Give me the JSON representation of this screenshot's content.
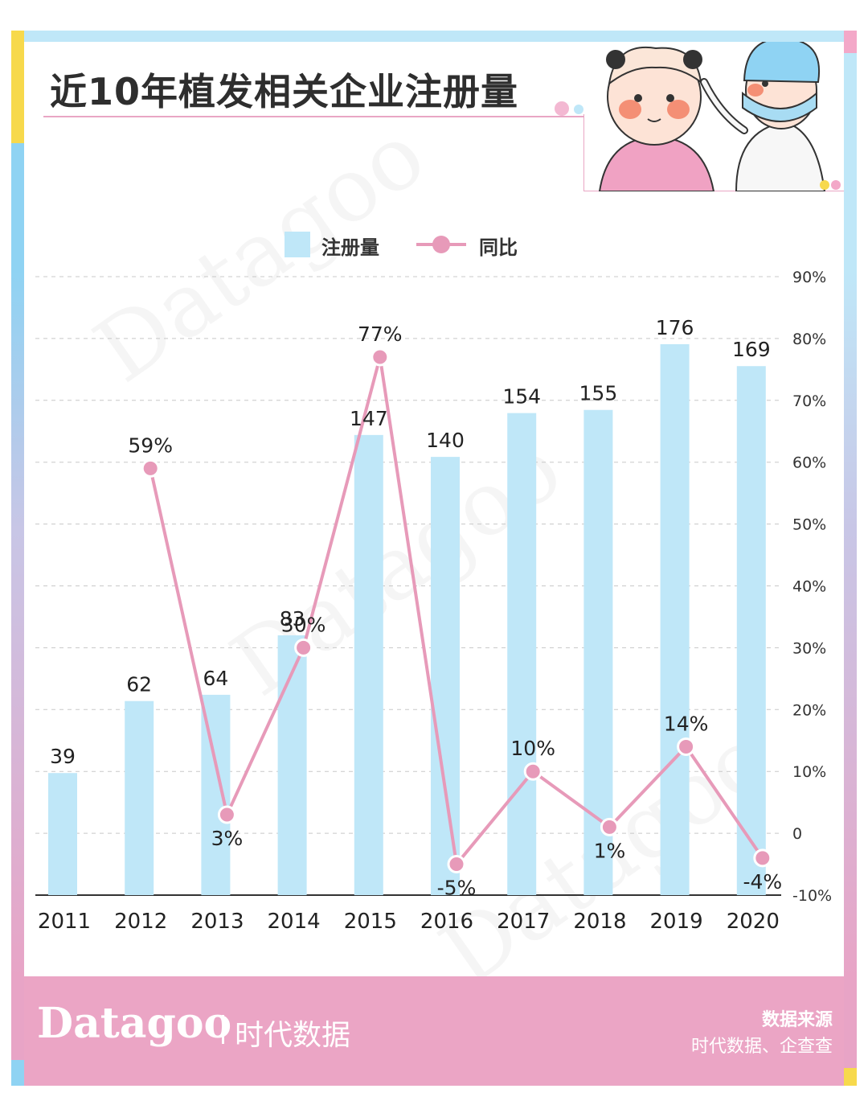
{
  "title": "近10年植发相关企业注册量",
  "legend": {
    "bar": "注册量",
    "line": "同比"
  },
  "footer": {
    "brand": "Datagoo",
    "brand_cn": "时代数据",
    "source_heading": "数据来源",
    "source_text": "时代数据、企查查"
  },
  "colors": {
    "bar": "#bfe7f8",
    "line": "#e79ab9",
    "footer": "#eba5c5"
  },
  "chart_data": {
    "type": "bar",
    "categories": [
      "2011",
      "2012",
      "2013",
      "2014",
      "2015",
      "2016",
      "2017",
      "2018",
      "2019",
      "2020"
    ],
    "series": [
      {
        "name": "注册量",
        "type": "bar",
        "values": [
          39,
          62,
          64,
          83,
          147,
          140,
          154,
          155,
          176,
          169
        ]
      },
      {
        "name": "同比",
        "type": "line",
        "values": [
          null,
          59,
          3,
          30,
          77,
          -5,
          10,
          1,
          14,
          -4
        ],
        "labels": [
          "",
          "59%",
          "3%",
          "30%",
          "77%",
          "-5%",
          "10%",
          "1%",
          "14%",
          "-4%"
        ]
      }
    ],
    "y2_ticks": [
      "90%",
      "80%",
      "70%",
      "60%",
      "50%",
      "40%",
      "30%",
      "20%",
      "10%",
      "0",
      "-10%"
    ],
    "y2lim": [
      -10,
      90
    ],
    "grid": true,
    "legend_position": "top-center"
  }
}
